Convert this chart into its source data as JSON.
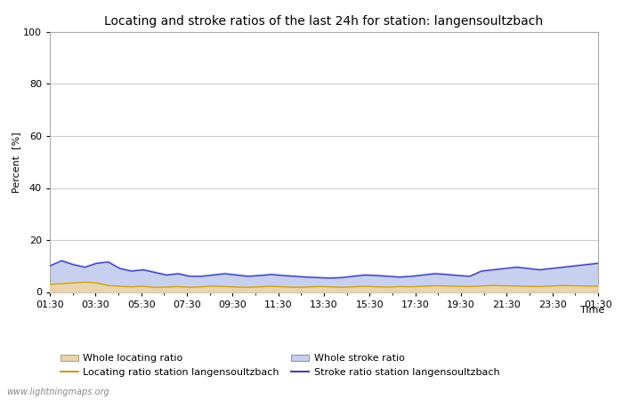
{
  "title": "Locating and stroke ratios of the last 24h for station: langensoultzbach",
  "xlabel": "Time",
  "ylabel": "Percent  [%]",
  "ylim": [
    0,
    100
  ],
  "yticks": [
    0,
    20,
    40,
    60,
    80,
    100
  ],
  "x_labels": [
    "01:30",
    "03:30",
    "05:30",
    "07:30",
    "09:30",
    "11:30",
    "13:30",
    "15:30",
    "17:30",
    "19:30",
    "21:30",
    "23:30",
    "01:30"
  ],
  "background_color": "#ffffff",
  "plot_bg_color": "#ffffff",
  "grid_color": "#cccccc",
  "watermark": "www.lightningmaps.org",
  "whole_locating_ratio": [
    3.5,
    3.8,
    4.0,
    4.2,
    3.9,
    2.8,
    2.5,
    2.2,
    2.4,
    2.0,
    2.1,
    2.3,
    2.0,
    2.2,
    2.5,
    2.3,
    2.1,
    2.0,
    2.2,
    2.4,
    2.2,
    2.0,
    2.1,
    2.3,
    2.2,
    2.0,
    2.2,
    2.4,
    2.2,
    2.1,
    2.3,
    2.2,
    2.4,
    2.6,
    2.5,
    2.4,
    2.3,
    2.5,
    2.7,
    2.6,
    2.5,
    2.4,
    2.3,
    2.5,
    2.7,
    2.6,
    2.5,
    2.4
  ],
  "whole_stroke_ratio": [
    10.5,
    12.5,
    11.0,
    10.0,
    11.5,
    12.0,
    9.5,
    8.5,
    9.0,
    8.0,
    7.0,
    7.5,
    6.5,
    6.5,
    7.0,
    7.5,
    7.0,
    6.5,
    6.8,
    7.2,
    6.8,
    6.5,
    6.2,
    6.0,
    5.8,
    6.0,
    6.5,
    7.0,
    6.8,
    6.5,
    6.2,
    6.5,
    7.0,
    7.5,
    7.2,
    6.8,
    6.5,
    8.5,
    9.0,
    9.5,
    10.0,
    9.5,
    9.0,
    9.5,
    10.0,
    10.5,
    11.0,
    11.5
  ],
  "locating_station": [
    3.0,
    3.2,
    3.5,
    3.8,
    3.5,
    2.5,
    2.2,
    2.0,
    2.2,
    1.8,
    1.9,
    2.1,
    1.8,
    2.0,
    2.3,
    2.1,
    1.9,
    1.8,
    2.0,
    2.2,
    2.0,
    1.8,
    1.9,
    2.1,
    2.0,
    1.8,
    2.0,
    2.2,
    2.0,
    1.9,
    2.1,
    2.0,
    2.2,
    2.4,
    2.3,
    2.2,
    2.1,
    2.3,
    2.5,
    2.4,
    2.3,
    2.2,
    2.1,
    2.3,
    2.5,
    2.4,
    2.3,
    2.2
  ],
  "stroke_station": [
    10.0,
    12.0,
    10.5,
    9.5,
    11.0,
    11.5,
    9.0,
    8.0,
    8.5,
    7.5,
    6.5,
    7.0,
    6.0,
    6.0,
    6.5,
    7.0,
    6.5,
    6.0,
    6.3,
    6.7,
    6.3,
    6.0,
    5.7,
    5.5,
    5.3,
    5.5,
    6.0,
    6.5,
    6.3,
    6.0,
    5.7,
    6.0,
    6.5,
    7.0,
    6.7,
    6.3,
    6.0,
    8.0,
    8.5,
    9.0,
    9.5,
    9.0,
    8.5,
    9.0,
    9.5,
    10.0,
    10.5,
    11.0
  ],
  "whole_locating_fill_color": "#e8d5b0",
  "whole_stroke_fill_color": "#c8d0f0",
  "locating_line_color": "#c8a020",
  "stroke_line_color": "#4040c0",
  "title_fontsize": 10,
  "label_fontsize": 8,
  "tick_fontsize": 8,
  "legend_fontsize": 8
}
